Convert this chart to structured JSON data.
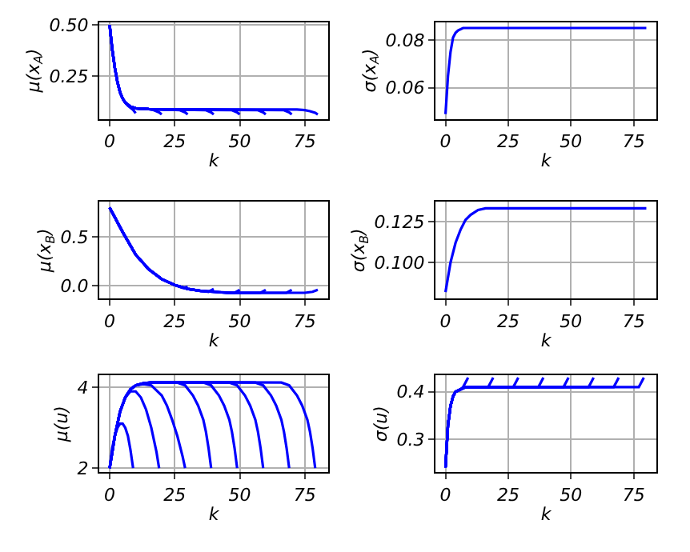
{
  "chart_data": [
    {
      "type": "line",
      "xlabel": "k",
      "ylabel": "μ(x$_{A}$)",
      "xlim": [
        -4,
        84
      ],
      "xticks": [
        0,
        25,
        50,
        75
      ],
      "ylim": [
        0.04,
        0.515
      ],
      "yticks": [
        0.25,
        {
          "value": 0.5,
          "label": "0.50"
        }
      ],
      "grid": true,
      "line_style": "solid",
      "series": [
        {
          "color": "#0000ff",
          "x": [
            0,
            1,
            2,
            3,
            4,
            5,
            6,
            7,
            8,
            9,
            10
          ],
          "values": [
            0.5,
            0.38,
            0.29,
            0.22,
            0.17,
            0.14,
            0.12,
            0.105,
            0.095,
            0.085,
            0.068
          ]
        },
        {
          "color": "#0000ff",
          "x": [
            0,
            1,
            2,
            3,
            4,
            5,
            6,
            8,
            10,
            15,
            17,
            19,
            20
          ],
          "values": [
            0.5,
            0.38,
            0.29,
            0.22,
            0.17,
            0.14,
            0.12,
            0.1,
            0.092,
            0.088,
            0.083,
            0.072,
            0.062
          ]
        },
        {
          "color": "#0000ff",
          "x": [
            0,
            1,
            2,
            3,
            4,
            5,
            6,
            8,
            10,
            15,
            20,
            27,
            29,
            30
          ],
          "values": [
            0.5,
            0.38,
            0.29,
            0.22,
            0.17,
            0.14,
            0.12,
            0.1,
            0.092,
            0.088,
            0.087,
            0.083,
            0.072,
            0.062
          ]
        },
        {
          "color": "#0000ff",
          "x": [
            0,
            1,
            2,
            3,
            4,
            5,
            6,
            8,
            10,
            15,
            20,
            37,
            39,
            40
          ],
          "values": [
            0.5,
            0.38,
            0.29,
            0.22,
            0.17,
            0.14,
            0.12,
            0.1,
            0.092,
            0.088,
            0.087,
            0.083,
            0.072,
            0.062
          ]
        },
        {
          "color": "#0000ff",
          "x": [
            0,
            1,
            2,
            3,
            4,
            5,
            6,
            8,
            10,
            15,
            20,
            47,
            49,
            50
          ],
          "values": [
            0.5,
            0.38,
            0.29,
            0.22,
            0.17,
            0.14,
            0.12,
            0.1,
            0.092,
            0.088,
            0.087,
            0.083,
            0.072,
            0.062
          ]
        },
        {
          "color": "#0000ff",
          "x": [
            0,
            1,
            2,
            3,
            4,
            5,
            6,
            8,
            10,
            15,
            20,
            57,
            59,
            60
          ],
          "values": [
            0.5,
            0.38,
            0.29,
            0.22,
            0.17,
            0.14,
            0.12,
            0.1,
            0.092,
            0.088,
            0.087,
            0.083,
            0.072,
            0.062
          ]
        },
        {
          "color": "#0000ff",
          "x": [
            0,
            1,
            2,
            3,
            4,
            5,
            6,
            8,
            10,
            15,
            20,
            67,
            69,
            70
          ],
          "values": [
            0.5,
            0.38,
            0.29,
            0.22,
            0.17,
            0.14,
            0.12,
            0.1,
            0.092,
            0.088,
            0.087,
            0.083,
            0.072,
            0.062
          ]
        },
        {
          "color": "#0000ff",
          "x": [
            0,
            1,
            2,
            3,
            4,
            5,
            6,
            8,
            10,
            15,
            20,
            72,
            75,
            77,
            79,
            80
          ],
          "values": [
            0.5,
            0.38,
            0.29,
            0.22,
            0.17,
            0.14,
            0.12,
            0.1,
            0.092,
            0.088,
            0.087,
            0.086,
            0.083,
            0.078,
            0.07,
            0.062
          ]
        }
      ]
    },
    {
      "type": "line",
      "xlabel": "k",
      "ylabel": "σ(x$_{A}$)",
      "xlim": [
        -4,
        84
      ],
      "xticks": [
        0,
        25,
        50,
        75
      ],
      "ylim": [
        0.047,
        0.0875
      ],
      "yticks": [
        0.06,
        0.08
      ],
      "grid": true,
      "line_style": "solid",
      "series": [
        {
          "color": "#0000ff",
          "x": [
            0,
            1,
            2,
            3,
            4,
            5,
            7,
            10,
            80
          ],
          "values": [
            0.049,
            0.065,
            0.075,
            0.081,
            0.083,
            0.084,
            0.085,
            0.085,
            0.085
          ]
        }
      ]
    },
    {
      "type": "line",
      "xlabel": "k",
      "ylabel": "μ(x$_{B}$)",
      "xlim": [
        -4,
        84
      ],
      "xticks": [
        0,
        25,
        50,
        75
      ],
      "ylim": [
        -0.13,
        0.86
      ],
      "yticks": [
        {
          "value": 0,
          "label": "0.0"
        },
        0.5
      ],
      "grid": true,
      "line_style": "solid",
      "series": [
        {
          "color": "#0000ff",
          "x": [
            0,
            5,
            10
          ],
          "values": [
            0.8,
            0.55,
            0.32
          ]
        },
        {
          "color": "#0000ff",
          "x": [
            0,
            5,
            10,
            15,
            20
          ],
          "values": [
            0.8,
            0.55,
            0.32,
            0.17,
            0.07
          ]
        },
        {
          "color": "#0000ff",
          "x": [
            0,
            5,
            10,
            15,
            20,
            25,
            28,
            30
          ],
          "values": [
            0.8,
            0.55,
            0.32,
            0.17,
            0.07,
            0.01,
            -0.02,
            -0.01
          ]
        },
        {
          "color": "#0000ff",
          "x": [
            0,
            5,
            10,
            15,
            20,
            25,
            30,
            35,
            38,
            40
          ],
          "values": [
            0.8,
            0.55,
            0.32,
            0.17,
            0.07,
            0.01,
            -0.03,
            -0.05,
            -0.06,
            -0.03
          ]
        },
        {
          "color": "#0000ff",
          "x": [
            0,
            5,
            10,
            15,
            20,
            25,
            30,
            35,
            40,
            48,
            50
          ],
          "values": [
            0.8,
            0.55,
            0.32,
            0.17,
            0.07,
            0.01,
            -0.03,
            -0.05,
            -0.06,
            -0.07,
            -0.04
          ]
        },
        {
          "color": "#0000ff",
          "x": [
            0,
            5,
            10,
            15,
            20,
            25,
            30,
            35,
            40,
            45,
            58,
            60
          ],
          "values": [
            0.8,
            0.55,
            0.32,
            0.17,
            0.07,
            0.01,
            -0.03,
            -0.05,
            -0.06,
            -0.07,
            -0.07,
            -0.04
          ]
        },
        {
          "color": "#0000ff",
          "x": [
            0,
            5,
            10,
            15,
            20,
            25,
            30,
            35,
            40,
            45,
            68,
            70
          ],
          "values": [
            0.8,
            0.55,
            0.32,
            0.17,
            0.07,
            0.01,
            -0.03,
            -0.05,
            -0.06,
            -0.07,
            -0.07,
            -0.04
          ]
        },
        {
          "color": "#0000ff",
          "x": [
            0,
            5,
            10,
            15,
            20,
            25,
            30,
            35,
            40,
            45,
            75,
            78,
            80
          ],
          "values": [
            0.8,
            0.55,
            0.32,
            0.17,
            0.07,
            0.01,
            -0.03,
            -0.05,
            -0.06,
            -0.07,
            -0.07,
            -0.06,
            -0.04
          ]
        }
      ]
    },
    {
      "type": "line",
      "xlabel": "k",
      "ylabel": "σ(x$_{B}$)",
      "xlim": [
        -4,
        84
      ],
      "xticks": [
        0,
        25,
        50,
        75
      ],
      "ylim": [
        0.078,
        0.137
      ],
      "yticks": [
        {
          "value": 0.1,
          "label": "0.100"
        },
        0.125
      ],
      "grid": true,
      "line_style": "solid",
      "series": [
        {
          "color": "#0000ff",
          "x": [
            0,
            2,
            4,
            6,
            8,
            10,
            13,
            16,
            20,
            80
          ],
          "values": [
            0.082,
            0.1,
            0.112,
            0.12,
            0.126,
            0.129,
            0.132,
            0.133,
            0.133,
            0.133
          ]
        }
      ]
    },
    {
      "type": "line",
      "xlabel": "k",
      "ylabel": "μ(u)",
      "xlim": [
        -4,
        84
      ],
      "xticks": [
        0,
        25,
        50,
        75
      ],
      "ylim": [
        1.9,
        4.3
      ],
      "yticks": [
        2,
        4
      ],
      "grid": true,
      "line_style": "solid",
      "series": [
        {
          "color": "#0000ff",
          "x": [
            0,
            1,
            2,
            3,
            4,
            5,
            6,
            7,
            8,
            9
          ],
          "values": [
            2.0,
            2.5,
            2.8,
            3.0,
            3.1,
            3.1,
            3.0,
            2.8,
            2.45,
            2.0
          ]
        },
        {
          "color": "#0000ff",
          "x": [
            0,
            2,
            4,
            6,
            8,
            10,
            12,
            14,
            16,
            17,
            18,
            19
          ],
          "values": [
            2.0,
            2.8,
            3.4,
            3.75,
            3.9,
            3.9,
            3.75,
            3.45,
            3.0,
            2.7,
            2.4,
            2.0
          ]
        },
        {
          "color": "#0000ff",
          "x": [
            0,
            2,
            4,
            6,
            8,
            10,
            13,
            16,
            20,
            22,
            24,
            26,
            27,
            28,
            29
          ],
          "values": [
            2.0,
            2.8,
            3.4,
            3.75,
            3.95,
            4.05,
            4.08,
            4.05,
            3.8,
            3.55,
            3.2,
            2.8,
            2.55,
            2.3,
            2.0
          ]
        },
        {
          "color": "#0000ff",
          "x": [
            0,
            2,
            4,
            6,
            8,
            10,
            13,
            16,
            20,
            26,
            29,
            32,
            34,
            36,
            37,
            38,
            39
          ],
          "values": [
            2.0,
            2.8,
            3.4,
            3.75,
            3.95,
            4.05,
            4.1,
            4.12,
            4.13,
            4.12,
            4.05,
            3.8,
            3.55,
            3.2,
            2.9,
            2.5,
            2.0
          ]
        },
        {
          "color": "#0000ff",
          "x": [
            0,
            2,
            4,
            6,
            8,
            10,
            13,
            16,
            20,
            36,
            39,
            42,
            44,
            46,
            47,
            48,
            49
          ],
          "values": [
            2.0,
            2.8,
            3.4,
            3.75,
            3.95,
            4.05,
            4.1,
            4.12,
            4.13,
            4.12,
            4.05,
            3.8,
            3.55,
            3.2,
            2.9,
            2.5,
            2.0
          ]
        },
        {
          "color": "#0000ff",
          "x": [
            0,
            2,
            4,
            6,
            8,
            10,
            13,
            16,
            20,
            46,
            49,
            52,
            54,
            56,
            57,
            58,
            59
          ],
          "values": [
            2.0,
            2.8,
            3.4,
            3.75,
            3.95,
            4.05,
            4.1,
            4.12,
            4.13,
            4.12,
            4.05,
            3.8,
            3.55,
            3.2,
            2.9,
            2.5,
            2.0
          ]
        },
        {
          "color": "#0000ff",
          "x": [
            0,
            2,
            4,
            6,
            8,
            10,
            13,
            16,
            20,
            56,
            59,
            62,
            64,
            66,
            67,
            68,
            69
          ],
          "values": [
            2.0,
            2.8,
            3.4,
            3.75,
            3.95,
            4.05,
            4.1,
            4.12,
            4.13,
            4.12,
            4.05,
            3.8,
            3.55,
            3.2,
            2.9,
            2.5,
            2.0
          ]
        },
        {
          "color": "#0000ff",
          "x": [
            0,
            2,
            4,
            6,
            8,
            10,
            13,
            16,
            20,
            66,
            69,
            72,
            74,
            76,
            77,
            78,
            79
          ],
          "values": [
            2.0,
            2.8,
            3.4,
            3.75,
            3.95,
            4.05,
            4.1,
            4.12,
            4.13,
            4.12,
            4.05,
            3.8,
            3.55,
            3.2,
            2.9,
            2.5,
            2.0
          ]
        }
      ]
    },
    {
      "type": "line",
      "xlabel": "k",
      "ylabel": "σ(u)",
      "xlim": [
        -4,
        84
      ],
      "xticks": [
        0,
        25,
        50,
        75
      ],
      "ylim": [
        0.23,
        0.435
      ],
      "yticks": [
        0.3,
        0.4
      ],
      "grid": true,
      "line_style": "solid",
      "series": [
        {
          "color": "#0000ff",
          "x": [
            0,
            1,
            2,
            3,
            4,
            6,
            8,
            76,
            77,
            78,
            79
          ],
          "values": [
            0.24,
            0.33,
            0.37,
            0.39,
            0.4,
            0.405,
            0.41,
            0.41,
            0.41,
            0.42,
            0.43
          ]
        },
        {
          "color": "#0000ff",
          "x": [
            0,
            1,
            2,
            3,
            4,
            6,
            8,
            66,
            67,
            68,
            69
          ],
          "values": [
            0.24,
            0.33,
            0.37,
            0.39,
            0.4,
            0.405,
            0.41,
            0.41,
            0.41,
            0.42,
            0.43
          ]
        },
        {
          "color": "#0000ff",
          "x": [
            0,
            1,
            2,
            3,
            4,
            6,
            8,
            56,
            57,
            58,
            59
          ],
          "values": [
            0.24,
            0.33,
            0.37,
            0.39,
            0.4,
            0.405,
            0.41,
            0.41,
            0.41,
            0.42,
            0.43
          ]
        },
        {
          "color": "#0000ff",
          "x": [
            0,
            1,
            2,
            3,
            4,
            6,
            8,
            46,
            47,
            48,
            49
          ],
          "values": [
            0.24,
            0.33,
            0.37,
            0.39,
            0.4,
            0.405,
            0.41,
            0.41,
            0.41,
            0.42,
            0.43
          ]
        },
        {
          "color": "#0000ff",
          "x": [
            0,
            1,
            2,
            3,
            4,
            6,
            8,
            36,
            37,
            38,
            39
          ],
          "values": [
            0.24,
            0.33,
            0.37,
            0.39,
            0.4,
            0.405,
            0.41,
            0.41,
            0.41,
            0.42,
            0.43
          ]
        },
        {
          "color": "#0000ff",
          "x": [
            0,
            1,
            2,
            3,
            4,
            6,
            8,
            26,
            27,
            28,
            29
          ],
          "values": [
            0.24,
            0.33,
            0.37,
            0.39,
            0.4,
            0.405,
            0.41,
            0.41,
            0.41,
            0.42,
            0.43
          ]
        },
        {
          "color": "#0000ff",
          "x": [
            0,
            1,
            2,
            3,
            4,
            6,
            8,
            16,
            17,
            18,
            19
          ],
          "values": [
            0.24,
            0.33,
            0.37,
            0.39,
            0.4,
            0.405,
            0.41,
            0.41,
            0.41,
            0.42,
            0.43
          ]
        },
        {
          "color": "#0000ff",
          "x": [
            0,
            1,
            2,
            3,
            4,
            6,
            7,
            8,
            9
          ],
          "values": [
            0.24,
            0.33,
            0.37,
            0.39,
            0.4,
            0.405,
            0.41,
            0.42,
            0.43
          ]
        }
      ]
    }
  ]
}
